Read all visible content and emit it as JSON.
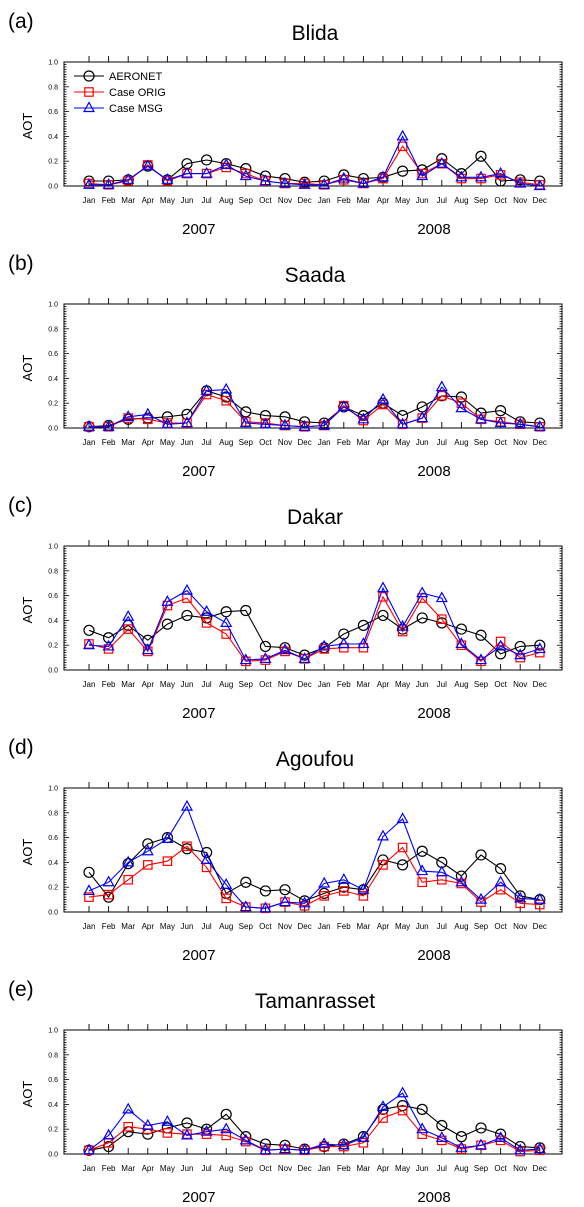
{
  "colors": {
    "aeronet": "#000000",
    "orig": "#ff0000",
    "msg": "#0000ff",
    "axis": "#000000"
  },
  "chart_data": [
    {
      "type": "line",
      "panel_label": "(a)",
      "title": "Blida",
      "ylabel": "AOT",
      "ylim": [
        0,
        1.0
      ],
      "yticks": [
        "0.0",
        "0.2",
        "0.4",
        "0.6",
        "0.8",
        "1.0"
      ],
      "categories": [
        "Jan",
        "Feb",
        "Mar",
        "Apr",
        "May",
        "Jun",
        "Jul",
        "Aug",
        "Sep",
        "Oct",
        "Nov",
        "Dec",
        "Jan",
        "Feb",
        "Mar",
        "Apr",
        "May",
        "Jun",
        "Jul",
        "Aug",
        "Sep",
        "Oct",
        "Nov",
        "Dec"
      ],
      "year_labels": [
        "2007",
        "2008"
      ],
      "legend": {
        "position": "top-left",
        "entries": [
          "AERONET",
          "Case ORIG",
          "Case MSG"
        ]
      },
      "series": [
        {
          "name": "AERONET",
          "marker": "circle",
          "values": [
            0.04,
            0.04,
            0.05,
            0.16,
            0.05,
            0.18,
            0.21,
            0.18,
            0.14,
            0.08,
            0.06,
            0.03,
            0.04,
            0.09,
            0.06,
            0.07,
            0.12,
            0.13,
            0.22,
            0.1,
            0.24,
            0.04,
            0.05,
            0.04
          ]
        },
        {
          "name": "Case ORIG",
          "marker": "square",
          "values": [
            0.02,
            0.01,
            0.04,
            0.17,
            0.04,
            0.1,
            0.1,
            0.15,
            0.1,
            0.04,
            0.02,
            0.02,
            0.01,
            0.05,
            0.02,
            0.06,
            0.32,
            0.1,
            0.18,
            0.06,
            0.06,
            0.09,
            0.03,
            0.01
          ]
        },
        {
          "name": "Case MSG",
          "marker": "triangle",
          "values": [
            0.01,
            0.01,
            0.05,
            0.16,
            0.05,
            0.1,
            0.1,
            0.17,
            0.08,
            0.04,
            0.02,
            0.01,
            0.01,
            0.06,
            0.02,
            0.07,
            0.4,
            0.08,
            0.18,
            0.07,
            0.07,
            0.1,
            0.02,
            0.0
          ]
        }
      ]
    },
    {
      "type": "line",
      "panel_label": "(b)",
      "title": "Saada",
      "ylabel": "AOT",
      "ylim": [
        0,
        1.0
      ],
      "yticks": [
        "0.0",
        "0.2",
        "0.4",
        "0.6",
        "0.8",
        "1.0"
      ],
      "categories": [
        "Jan",
        "Feb",
        "Mar",
        "Apr",
        "May",
        "Jun",
        "Jul",
        "Aug",
        "Sep",
        "Oct",
        "Nov",
        "Dec",
        "Jan",
        "Feb",
        "Mar",
        "Apr",
        "May",
        "Jun",
        "Jul",
        "Aug",
        "Sep",
        "Oct",
        "Nov",
        "Dec"
      ],
      "year_labels": [
        "2007",
        "2008"
      ],
      "series": [
        {
          "name": "AERONET",
          "marker": "circle",
          "values": [
            0.01,
            0.02,
            0.07,
            0.08,
            0.09,
            0.11,
            0.3,
            0.25,
            0.13,
            0.1,
            0.09,
            0.05,
            0.04,
            0.17,
            0.1,
            0.2,
            0.1,
            0.17,
            0.26,
            0.25,
            0.12,
            0.14,
            0.05,
            0.04
          ]
        },
        {
          "name": "Case ORIG",
          "marker": "square",
          "values": [
            0.01,
            0.01,
            0.08,
            0.07,
            0.04,
            0.04,
            0.27,
            0.22,
            0.05,
            0.04,
            0.02,
            0.01,
            0.02,
            0.18,
            0.06,
            0.19,
            0.03,
            0.08,
            0.26,
            0.2,
            0.07,
            0.05,
            0.03,
            0.01
          ]
        },
        {
          "name": "Case MSG",
          "marker": "triangle",
          "values": [
            0.01,
            0.01,
            0.09,
            0.11,
            0.03,
            0.04,
            0.3,
            0.31,
            0.04,
            0.03,
            0.02,
            0.01,
            0.02,
            0.17,
            0.07,
            0.23,
            0.03,
            0.08,
            0.33,
            0.16,
            0.07,
            0.04,
            0.03,
            0.01
          ]
        }
      ]
    },
    {
      "type": "line",
      "panel_label": "(c)",
      "title": "Dakar",
      "ylabel": "AOT",
      "ylim": [
        0,
        1.0
      ],
      "yticks": [
        "0.0",
        "0.2",
        "0.4",
        "0.6",
        "0.8",
        "1.0"
      ],
      "categories": [
        "Jan",
        "Feb",
        "Mar",
        "Apr",
        "May",
        "Jun",
        "Jul",
        "Aug",
        "Sep",
        "Oct",
        "Nov",
        "Dec",
        "Jan",
        "Feb",
        "Mar",
        "Apr",
        "May",
        "Jun",
        "Jul",
        "Aug",
        "Sep",
        "Oct",
        "Nov",
        "Dec"
      ],
      "year_labels": [
        "2007",
        "2008"
      ],
      "series": [
        {
          "name": "AERONET",
          "marker": "circle",
          "values": [
            0.32,
            0.26,
            0.36,
            0.24,
            0.37,
            0.44,
            0.42,
            0.47,
            0.48,
            0.19,
            0.18,
            0.12,
            0.18,
            0.29,
            0.36,
            0.44,
            0.33,
            0.42,
            0.38,
            0.33,
            0.28,
            0.13,
            0.19,
            0.2
          ]
        },
        {
          "name": "Case ORIG",
          "marker": "square",
          "values": [
            0.21,
            0.17,
            0.33,
            0.15,
            0.52,
            0.58,
            0.38,
            0.29,
            0.07,
            0.08,
            0.15,
            0.09,
            0.17,
            0.18,
            0.18,
            0.59,
            0.31,
            0.58,
            0.41,
            0.2,
            0.07,
            0.23,
            0.1,
            0.14
          ]
        },
        {
          "name": "Case MSG",
          "marker": "triangle",
          "values": [
            0.2,
            0.19,
            0.43,
            0.16,
            0.55,
            0.64,
            0.47,
            0.38,
            0.08,
            0.09,
            0.16,
            0.09,
            0.19,
            0.21,
            0.21,
            0.66,
            0.35,
            0.62,
            0.58,
            0.21,
            0.08,
            0.19,
            0.12,
            0.17
          ]
        }
      ]
    },
    {
      "type": "line",
      "panel_label": "(d)",
      "title": "Agoufou",
      "ylabel": "AOT",
      "ylim": [
        0,
        1.0
      ],
      "yticks": [
        "0.0",
        "0.2",
        "0.4",
        "0.6",
        "0.8",
        "1.0"
      ],
      "categories": [
        "Jan",
        "Feb",
        "Mar",
        "Apr",
        "May",
        "Jun",
        "Jul",
        "Aug",
        "Sep",
        "Oct",
        "Nov",
        "Dec",
        "Jan",
        "Feb",
        "Mar",
        "Apr",
        "May",
        "Jun",
        "Jul",
        "Aug",
        "Sep",
        "Oct",
        "Nov",
        "Dec"
      ],
      "year_labels": [
        "2007",
        "2008"
      ],
      "series": [
        {
          "name": "AERONET",
          "marker": "circle",
          "values": [
            0.32,
            0.12,
            0.39,
            0.55,
            0.6,
            0.51,
            0.48,
            0.15,
            0.24,
            0.17,
            0.18,
            0.09,
            0.15,
            0.2,
            0.18,
            0.42,
            0.38,
            0.49,
            0.4,
            0.29,
            0.46,
            0.35,
            0.13,
            0.1
          ]
        },
        {
          "name": "Case ORIG",
          "marker": "square",
          "values": [
            0.12,
            0.14,
            0.26,
            0.38,
            0.41,
            0.53,
            0.36,
            0.11,
            0.04,
            0.03,
            0.08,
            0.05,
            0.13,
            0.17,
            0.13,
            0.38,
            0.52,
            0.24,
            0.26,
            0.23,
            0.08,
            0.18,
            0.07,
            0.06
          ]
        },
        {
          "name": "Case MSG",
          "marker": "triangle",
          "values": [
            0.17,
            0.24,
            0.4,
            0.49,
            0.59,
            0.85,
            0.42,
            0.22,
            0.04,
            0.03,
            0.08,
            0.07,
            0.23,
            0.26,
            0.18,
            0.61,
            0.75,
            0.33,
            0.32,
            0.24,
            0.1,
            0.24,
            0.11,
            0.1
          ]
        }
      ]
    },
    {
      "type": "line",
      "panel_label": "(e)",
      "title": "Tamanrasset",
      "ylabel": "AOT",
      "ylim": [
        0,
        1.0
      ],
      "yticks": [
        "0.0",
        "0.2",
        "0.4",
        "0.6",
        "0.8",
        "1.0"
      ],
      "categories": [
        "Jan",
        "Feb",
        "Mar",
        "Apr",
        "May",
        "Jun",
        "Jul",
        "Aug",
        "Sep",
        "Oct",
        "Nov",
        "Dec",
        "Jan",
        "Feb",
        "Mar",
        "Apr",
        "May",
        "Jun",
        "Jul",
        "Aug",
        "Sep",
        "Oct",
        "Nov",
        "Dec"
      ],
      "year_labels": [
        "2007",
        "2008"
      ],
      "series": [
        {
          "name": "AERONET",
          "marker": "circle",
          "values": [
            0.03,
            0.06,
            0.18,
            0.16,
            0.21,
            0.25,
            0.2,
            0.32,
            0.14,
            0.08,
            0.07,
            0.04,
            0.06,
            0.08,
            0.14,
            0.36,
            0.39,
            0.36,
            0.23,
            0.14,
            0.21,
            0.16,
            0.06,
            0.05
          ]
        },
        {
          "name": "Case ORIG",
          "marker": "square",
          "values": [
            0.03,
            0.09,
            0.22,
            0.2,
            0.17,
            0.16,
            0.16,
            0.15,
            0.1,
            0.03,
            0.04,
            0.03,
            0.06,
            0.06,
            0.09,
            0.29,
            0.35,
            0.16,
            0.11,
            0.04,
            0.07,
            0.11,
            0.02,
            0.03
          ]
        },
        {
          "name": "Case MSG",
          "marker": "triangle",
          "values": [
            0.03,
            0.15,
            0.36,
            0.23,
            0.26,
            0.15,
            0.18,
            0.2,
            0.11,
            0.03,
            0.04,
            0.03,
            0.08,
            0.07,
            0.13,
            0.38,
            0.49,
            0.2,
            0.13,
            0.05,
            0.07,
            0.13,
            0.03,
            0.04
          ]
        }
      ]
    }
  ]
}
